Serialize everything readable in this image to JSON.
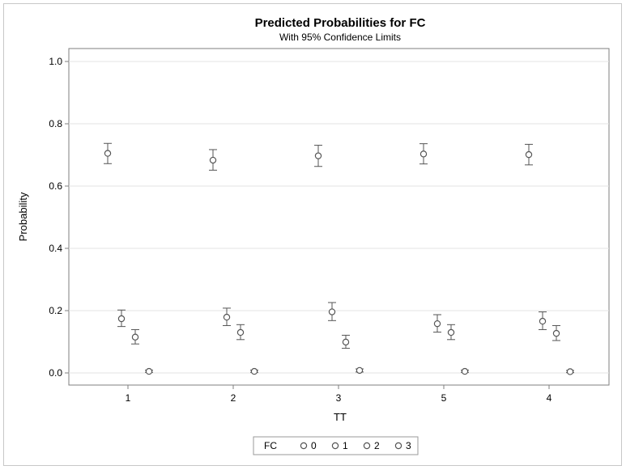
{
  "chart_data": {
    "type": "scatter",
    "title": "Predicted Probabilities for FC",
    "subtitle": "With 95% Confidence Limits",
    "xlabel": "TT",
    "ylabel": "Probability",
    "categories": [
      "1",
      "2",
      "3",
      "5",
      "4"
    ],
    "ylim": [
      0,
      1.0
    ],
    "yticks": [
      "0.0",
      "0.2",
      "0.4",
      "0.6",
      "0.8",
      "1.0"
    ],
    "grid": true,
    "legend": {
      "title": "FC",
      "placement": "bottom",
      "entries": [
        "0",
        "1",
        "2",
        "3"
      ]
    },
    "series": [
      {
        "name": "0",
        "values": [
          0.705,
          0.683,
          0.697,
          0.703,
          0.701
        ],
        "lower": [
          0.672,
          0.651,
          0.663,
          0.671,
          0.668
        ],
        "upper": [
          0.737,
          0.717,
          0.731,
          0.736,
          0.734
        ]
      },
      {
        "name": "1",
        "values": [
          0.174,
          0.179,
          0.196,
          0.158,
          0.166
        ],
        "lower": [
          0.149,
          0.152,
          0.168,
          0.131,
          0.139
        ],
        "upper": [
          0.202,
          0.208,
          0.226,
          0.187,
          0.196
        ]
      },
      {
        "name": "2",
        "values": [
          0.115,
          0.13,
          0.099,
          0.13,
          0.127
        ],
        "lower": [
          0.093,
          0.107,
          0.079,
          0.107,
          0.104
        ],
        "upper": [
          0.139,
          0.155,
          0.121,
          0.155,
          0.152
        ]
      },
      {
        "name": "3",
        "values": [
          0.005,
          0.005,
          0.008,
          0.005,
          0.004
        ],
        "lower": [
          0.002,
          0.002,
          0.003,
          0.002,
          0.001
        ],
        "upper": [
          0.009,
          0.009,
          0.013,
          0.009,
          0.008
        ]
      }
    ]
  }
}
